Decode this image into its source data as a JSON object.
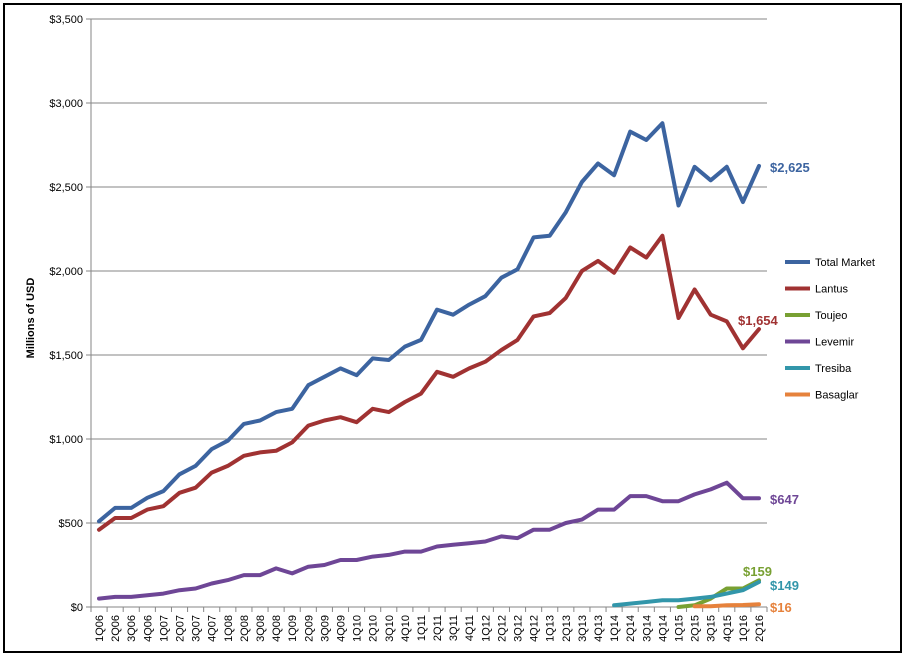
{
  "chart_data": {
    "type": "line",
    "ylabel": "Millions of USD",
    "ylim": [
      0,
      3500
    ],
    "yticks": [
      "$0",
      "$500",
      "$1,000",
      "$1,500",
      "$2,000",
      "$2,500",
      "$3,000",
      "$3,500"
    ],
    "ytick_values": [
      0,
      500,
      1000,
      1500,
      2000,
      2500,
      3000,
      3500
    ],
    "grid": "horizontal",
    "legend_position": "right",
    "categories": [
      "1Q06",
      "2Q06",
      "3Q06",
      "4Q06",
      "1Q07",
      "2Q07",
      "3Q07",
      "4Q07",
      "1Q08",
      "2Q08",
      "3Q08",
      "4Q08",
      "1Q09",
      "2Q09",
      "3Q09",
      "4Q09",
      "1Q10",
      "2Q10",
      "3Q10",
      "4Q10",
      "1Q11",
      "2Q11",
      "3Q11",
      "4Q11",
      "1Q12",
      "2Q12",
      "3Q12",
      "4Q12",
      "1Q13",
      "2Q13",
      "3Q13",
      "4Q13",
      "1Q14",
      "2Q14",
      "3Q14",
      "4Q14",
      "1Q15",
      "2Q15",
      "3Q15",
      "4Q15",
      "1Q16",
      "2Q16"
    ],
    "series": [
      {
        "name": "Total Market",
        "color": "#3c64a0",
        "end_label": "$2,625",
        "values": [
          510,
          590,
          590,
          650,
          690,
          790,
          840,
          940,
          990,
          1090,
          1110,
          1160,
          1180,
          1320,
          1370,
          1420,
          1380,
          1480,
          1470,
          1550,
          1590,
          1770,
          1740,
          1800,
          1850,
          1960,
          2010,
          2200,
          2210,
          2350,
          2530,
          2640,
          2570,
          2830,
          2780,
          2880,
          2390,
          2620,
          2540,
          2620,
          2410,
          2625
        ]
      },
      {
        "name": "Lantus",
        "color": "#a03232",
        "end_label": "$1,654",
        "values": [
          460,
          530,
          530,
          580,
          600,
          680,
          710,
          800,
          840,
          900,
          920,
          930,
          980,
          1080,
          1110,
          1130,
          1100,
          1180,
          1160,
          1220,
          1270,
          1400,
          1370,
          1420,
          1460,
          1530,
          1590,
          1730,
          1750,
          1840,
          2000,
          2060,
          1990,
          2140,
          2080,
          2210,
          1720,
          1890,
          1740,
          1700,
          1540,
          1654
        ]
      },
      {
        "name": "Toujeo",
        "color": "#78a032",
        "end_label": "$159",
        "values": [
          null,
          null,
          null,
          null,
          null,
          null,
          null,
          null,
          null,
          null,
          null,
          null,
          null,
          null,
          null,
          null,
          null,
          null,
          null,
          null,
          null,
          null,
          null,
          null,
          null,
          null,
          null,
          null,
          null,
          null,
          null,
          null,
          null,
          null,
          null,
          null,
          0,
          10,
          50,
          110,
          110,
          159
        ]
      },
      {
        "name": "Levemir",
        "color": "#6e4696",
        "end_label": "$647",
        "values": [
          50,
          60,
          60,
          70,
          80,
          100,
          110,
          140,
          160,
          190,
          190,
          230,
          200,
          240,
          250,
          280,
          280,
          300,
          310,
          330,
          330,
          360,
          370,
          380,
          390,
          420,
          410,
          460,
          460,
          500,
          520,
          580,
          580,
          660,
          660,
          630,
          630,
          670,
          700,
          740,
          647,
          647
        ]
      },
      {
        "name": "Tresiba",
        "color": "#3296aa",
        "end_label": "$149",
        "values": [
          null,
          null,
          null,
          null,
          null,
          null,
          null,
          null,
          null,
          null,
          null,
          null,
          null,
          null,
          null,
          null,
          null,
          null,
          null,
          null,
          null,
          null,
          null,
          null,
          null,
          null,
          null,
          null,
          null,
          null,
          null,
          null,
          10,
          20,
          30,
          40,
          40,
          50,
          60,
          80,
          100,
          149
        ]
      },
      {
        "name": "Basaglar",
        "color": "#e6823c",
        "end_label": "$16",
        "values": [
          null,
          null,
          null,
          null,
          null,
          null,
          null,
          null,
          null,
          null,
          null,
          null,
          null,
          null,
          null,
          null,
          null,
          null,
          null,
          null,
          null,
          null,
          null,
          null,
          null,
          null,
          null,
          null,
          null,
          null,
          null,
          null,
          null,
          null,
          null,
          null,
          null,
          5,
          5,
          10,
          12,
          16
        ]
      }
    ]
  }
}
